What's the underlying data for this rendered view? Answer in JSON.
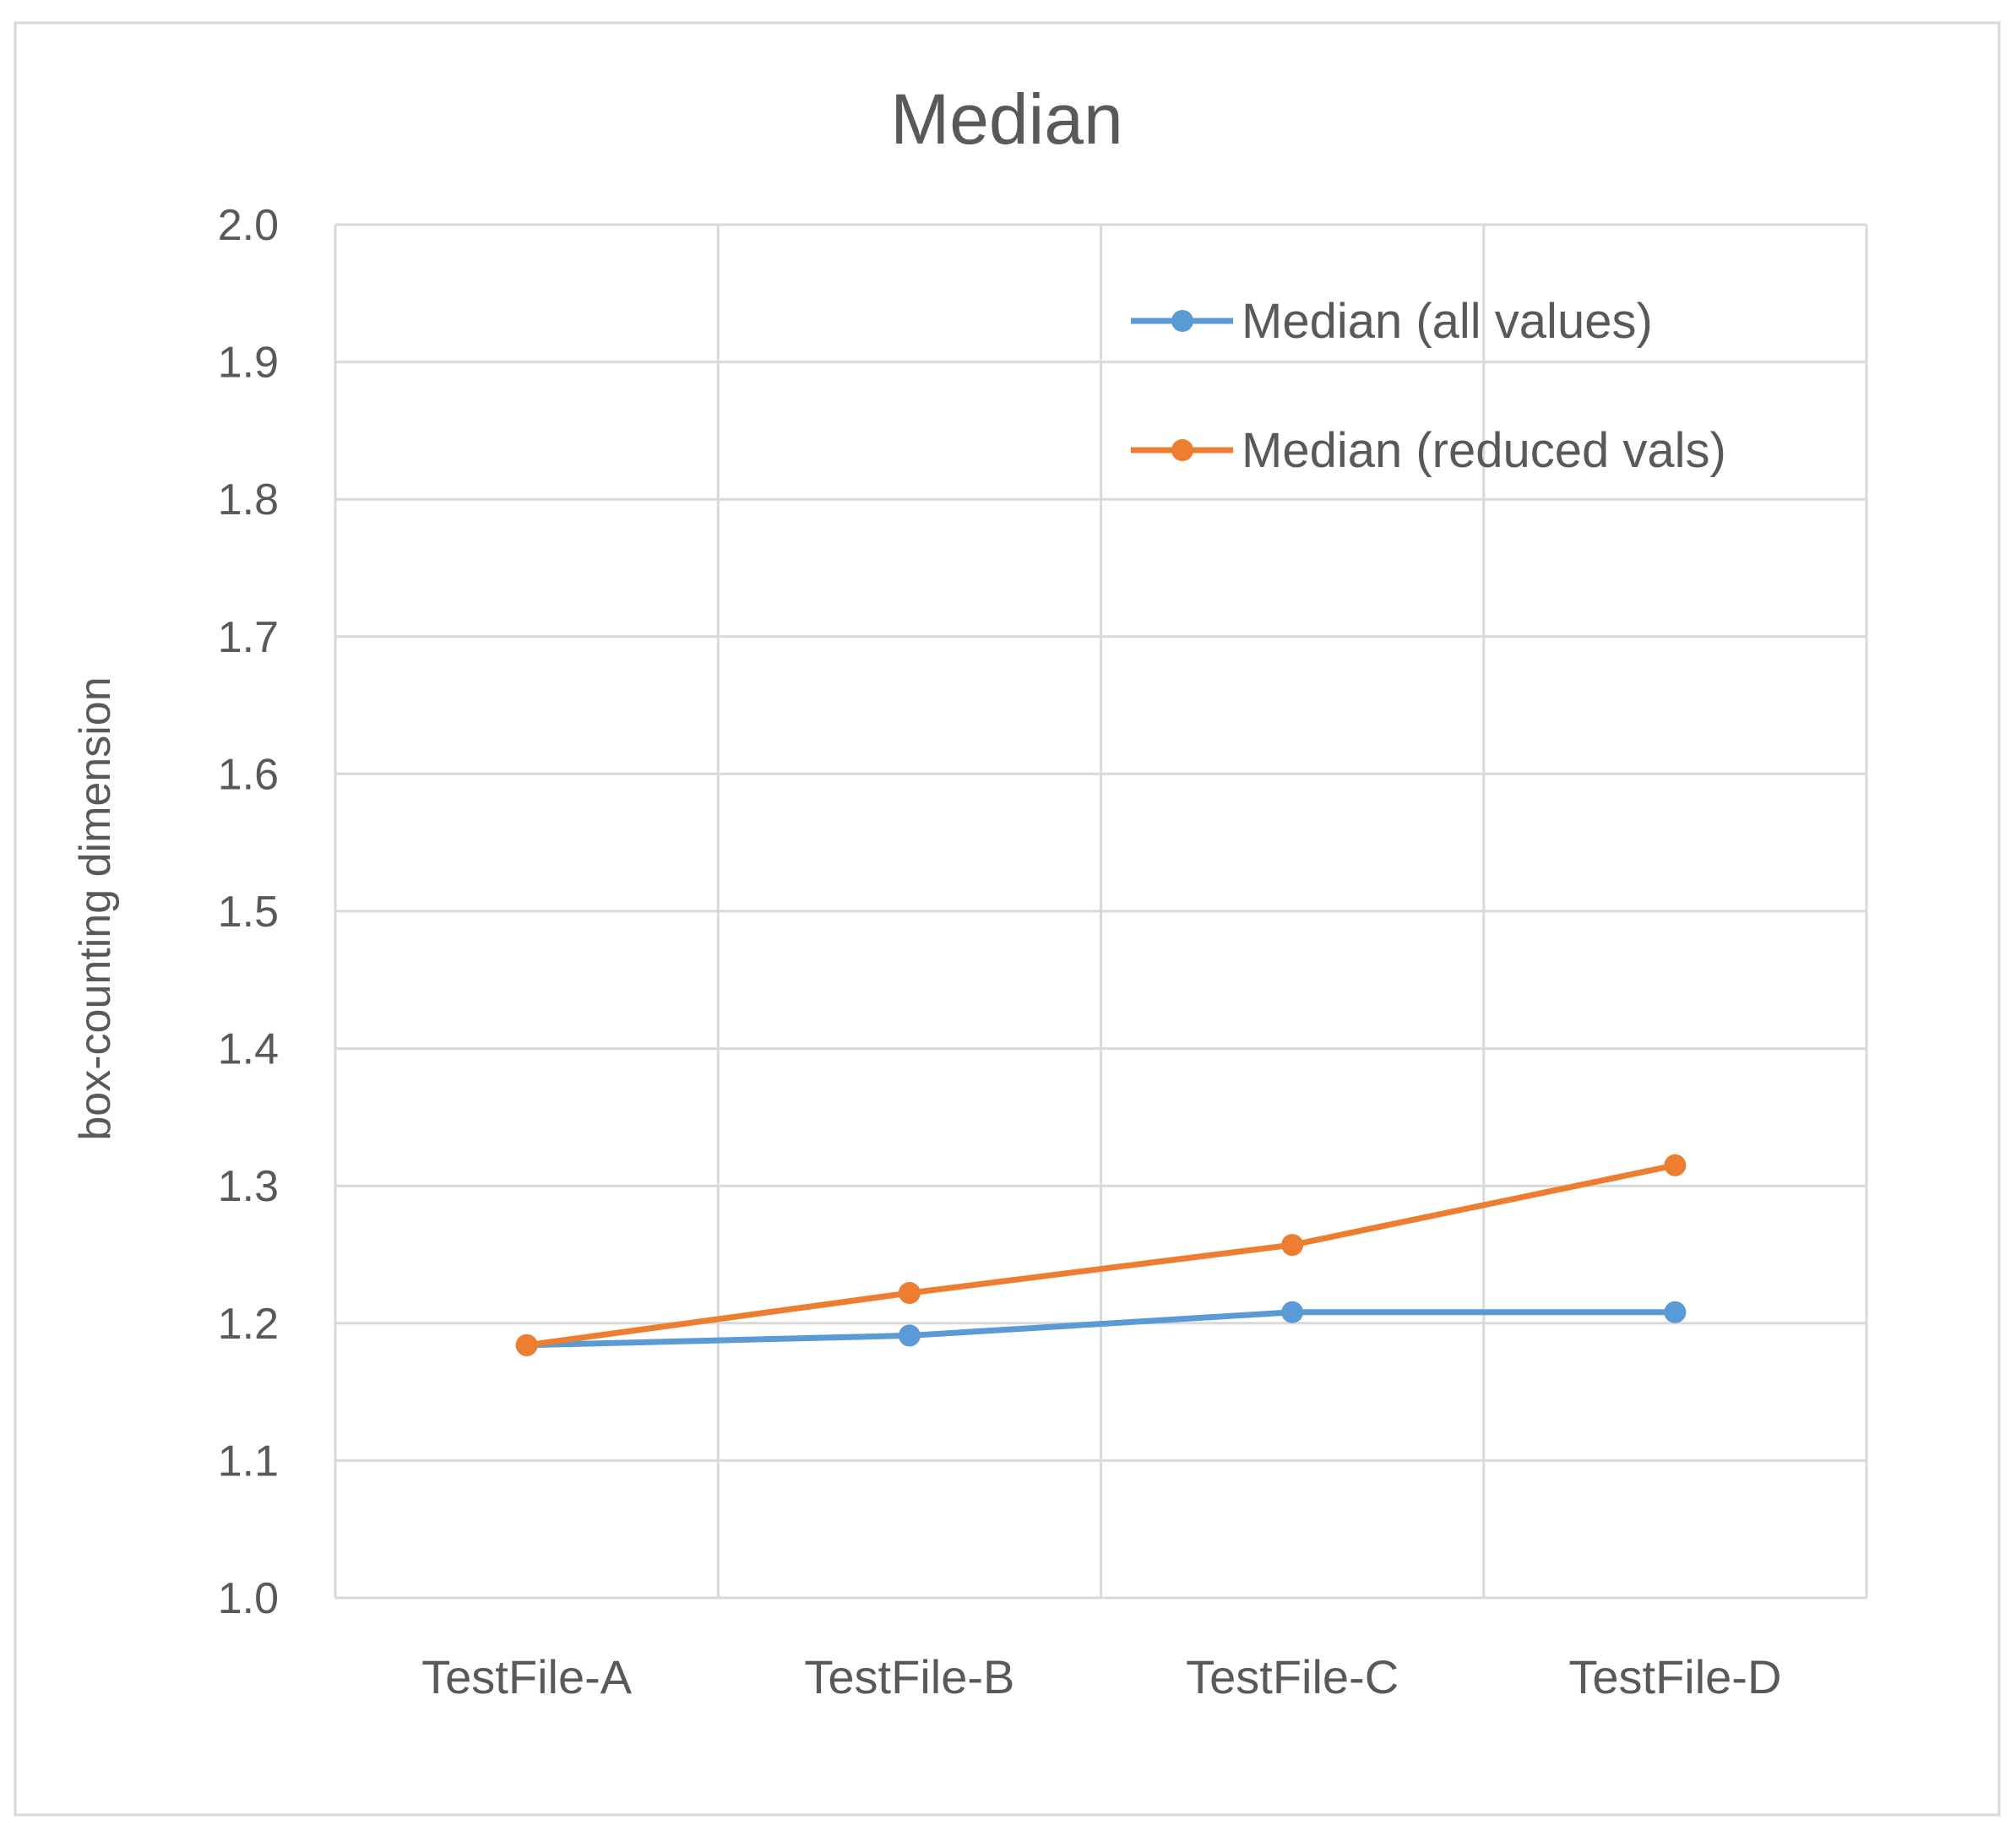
{
  "chart_data": {
    "type": "line",
    "title": "Median",
    "xlabel": "",
    "ylabel": "box-counting dimension",
    "categories": [
      "TestFile-A",
      "TestFile-B",
      "TestFile-C",
      "TestFile-D"
    ],
    "ylim": [
      1.0,
      2.0
    ],
    "yticks": [
      "1.0",
      "1.1",
      "1.2",
      "1.3",
      "1.4",
      "1.5",
      "1.6",
      "1.7",
      "1.8",
      "1.9",
      "2.0"
    ],
    "grid": true,
    "legend_position": "top-right",
    "series": [
      {
        "name": "Median (all values)",
        "color": "#5B9BD5",
        "values": [
          1.184,
          1.191,
          1.208,
          1.208
        ]
      },
      {
        "name": "Median (reduced vals)",
        "color": "#ED7D31",
        "values": [
          1.184,
          1.222,
          1.257,
          1.315
        ]
      }
    ]
  }
}
